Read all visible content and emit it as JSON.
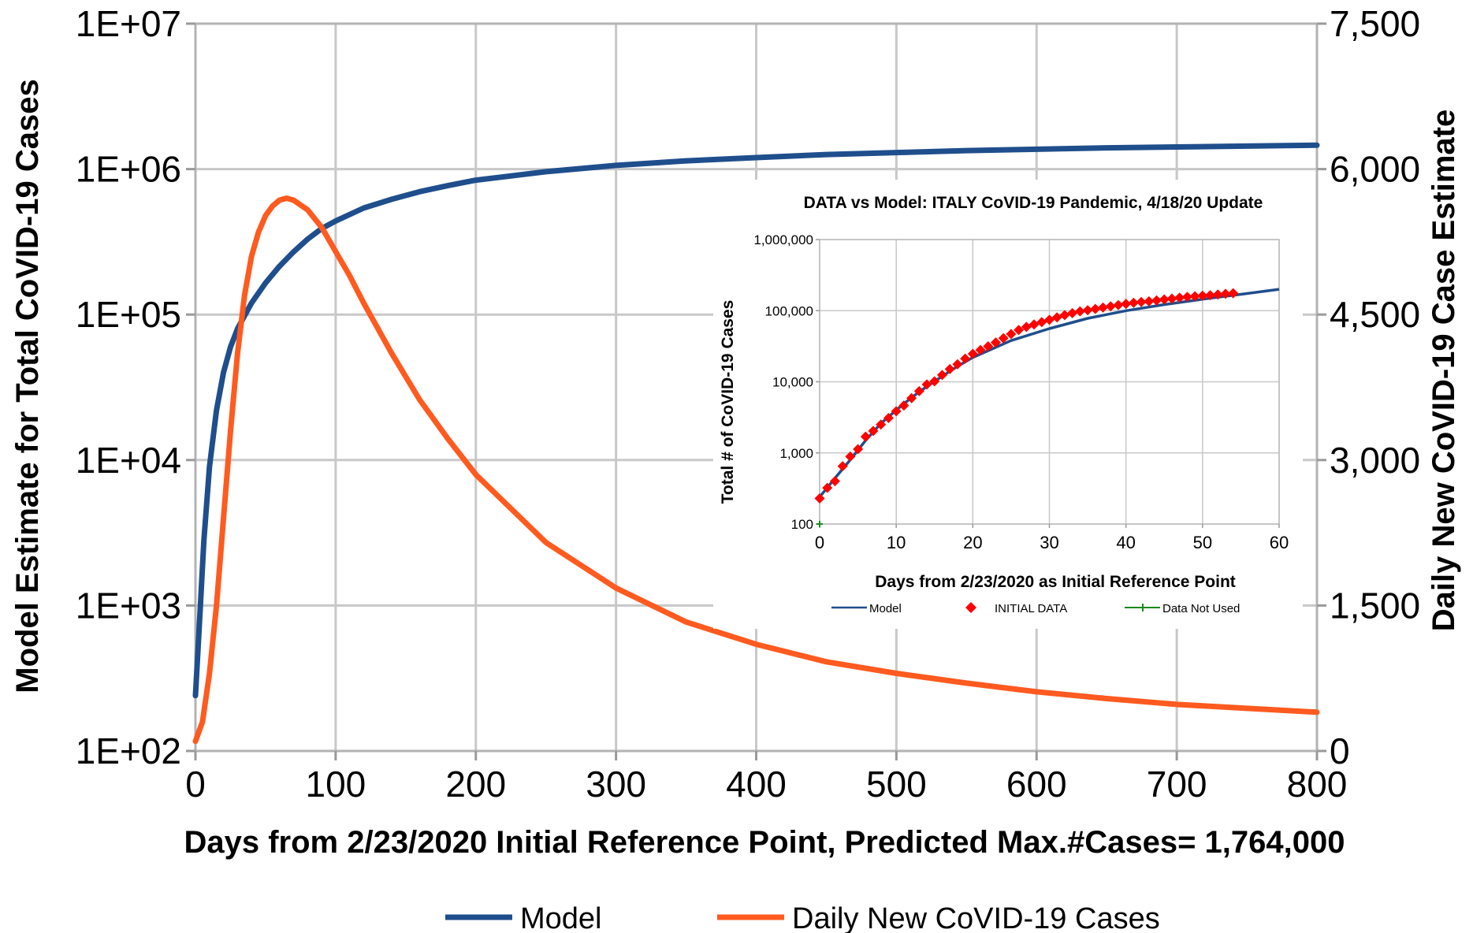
{
  "chart_data": [
    {
      "type": "line",
      "title": "",
      "xlabel": "Days from 2/23/2020 Initial Reference Point, Predicted Max.#Cases= 1,764,000",
      "ylabel_left": "Model Estimate for Total CoVID-19 Cases",
      "ylabel_right": "Daily New CoVID-19 Case Estimate",
      "xlim": [
        0,
        800
      ],
      "x_ticks": [
        "0",
        "100",
        "200",
        "300",
        "400",
        "500",
        "600",
        "700",
        "800"
      ],
      "ylim_left": [
        100,
        10000000
      ],
      "y_left_scale": "log",
      "y_left_ticks": [
        "1E+02",
        "1E+03",
        "1E+04",
        "1E+05",
        "1E+06",
        "1E+07"
      ],
      "ylim_right": [
        0,
        7500
      ],
      "y_right_ticks": [
        "0",
        "1,500",
        "3,000",
        "4,500",
        "6,000",
        "7,500"
      ],
      "grid": true,
      "legend_position": "bottom",
      "legend": [
        "Model",
        "Daily New CoVID-19 Cases"
      ],
      "series": [
        {
          "name": "Model",
          "axis": "left",
          "color": "#1f4e8c",
          "x": [
            0,
            3,
            6,
            10,
            15,
            20,
            25,
            30,
            40,
            50,
            60,
            70,
            80,
            90,
            100,
            120,
            140,
            160,
            180,
            200,
            250,
            300,
            350,
            400,
            450,
            500,
            550,
            600,
            650,
            700,
            750,
            800
          ],
          "y": [
            240,
            800,
            2800,
            9000,
            22000,
            40000,
            60000,
            80000,
            120000,
            165000,
            215000,
            270000,
            330000,
            390000,
            440000,
            540000,
            620000,
            700000,
            770000,
            840000,
            960000,
            1060000,
            1140000,
            1200000,
            1260000,
            1300000,
            1340000,
            1370000,
            1400000,
            1420000,
            1440000,
            1460000
          ]
        },
        {
          "name": "Daily New CoVID-19 Cases",
          "axis": "right",
          "color": "#ff5a1f",
          "x": [
            0,
            5,
            10,
            15,
            20,
            25,
            30,
            35,
            40,
            45,
            50,
            55,
            60,
            65,
            70,
            80,
            90,
            100,
            110,
            120,
            140,
            160,
            180,
            200,
            250,
            300,
            350,
            400,
            450,
            500,
            550,
            600,
            650,
            700,
            750,
            800
          ],
          "y": [
            100,
            300,
            800,
            1500,
            2400,
            3300,
            4100,
            4700,
            5100,
            5350,
            5520,
            5620,
            5680,
            5700,
            5680,
            5580,
            5400,
            5150,
            4900,
            4620,
            4100,
            3620,
            3220,
            2850,
            2150,
            1680,
            1330,
            1100,
            920,
            800,
            700,
            610,
            540,
            480,
            440,
            400
          ]
        }
      ]
    },
    {
      "type": "line",
      "title": "DATA vs Model: ITALY CoVID-19 Pandemic, 4/18/20 Update",
      "xlabel": "Days from 2/23/2020 as Initial Reference Point",
      "ylabel": "Total # of CoVID-19 Cases",
      "xlim": [
        0,
        60
      ],
      "x_ticks": [
        "0",
        "10",
        "20",
        "30",
        "40",
        "50",
        "60"
      ],
      "ylim": [
        100,
        1000000
      ],
      "y_scale": "log",
      "y_ticks": [
        "100",
        "1,000",
        "10,000",
        "100,000",
        "1,000,000"
      ],
      "grid": true,
      "legend_position": "bottom",
      "legend": [
        "Model",
        "INITIAL DATA",
        "Data Not Used"
      ],
      "series": [
        {
          "name": "Model",
          "type": "line",
          "color": "#1f4e8c",
          "x": [
            0,
            2,
            4,
            6,
            8,
            10,
            12,
            14,
            16,
            18,
            20,
            25,
            30,
            35,
            40,
            45,
            50,
            55,
            60
          ],
          "y": [
            240,
            440,
            800,
            1500,
            2600,
            4000,
            6000,
            8600,
            12000,
            16500,
            22000,
            38000,
            56000,
            78000,
            100000,
            122000,
            145000,
            170000,
            200000
          ]
        },
        {
          "name": "INITIAL DATA",
          "type": "scatter",
          "color": "#ff0000",
          "x": [
            0,
            1,
            2,
            3,
            4,
            5,
            6,
            7,
            8,
            9,
            10,
            11,
            12,
            13,
            14,
            15,
            16,
            17,
            18,
            19,
            20,
            21,
            22,
            23,
            24,
            25,
            26,
            27,
            28,
            29,
            30,
            31,
            32,
            33,
            34,
            35,
            36,
            37,
            38,
            39,
            40,
            41,
            42,
            43,
            44,
            45,
            46,
            47,
            48,
            49,
            50,
            51,
            52,
            53,
            54
          ],
          "y": [
            229,
            322,
            400,
            650,
            888,
            1128,
            1694,
            2036,
            2502,
            3089,
            3858,
            4636,
            5883,
            7375,
            9172,
            10149,
            12462,
            15113,
            17660,
            21157,
            24747,
            27980,
            31506,
            35713,
            41035,
            47021,
            53578,
            59138,
            63927,
            69176,
            74386,
            80589,
            86498,
            92472,
            97689,
            101739,
            105792,
            110574,
            115242,
            119827,
            124632,
            128948,
            132547,
            135586,
            139422,
            143626,
            147577,
            152271,
            156363,
            159516,
            162488,
            165155,
            168941,
            172434,
            175925
          ]
        },
        {
          "name": "Data Not Used",
          "type": "scatter",
          "color": "#1a8a1a",
          "x": [
            0
          ],
          "y": [
            100
          ]
        }
      ]
    }
  ]
}
